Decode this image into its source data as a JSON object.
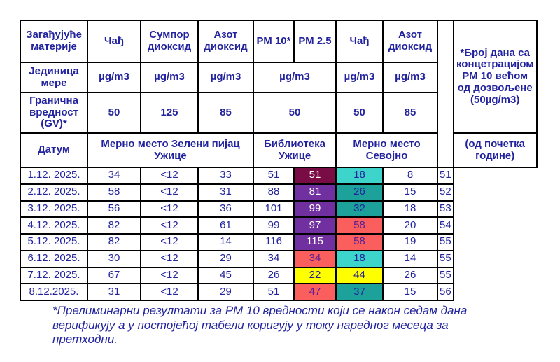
{
  "colors": {
    "text_navy": "#23239E",
    "maroon": "#7A0C45",
    "purple": "#7030A0",
    "red": "#FB5F5D",
    "turquoise": "#3DD5CB",
    "teal": "#1CA29A",
    "yellow": "#FFFF00",
    "red_cell_text": "#5A1F96",
    "yellow_cell_text": "#232184",
    "white": "#FFFFFF"
  },
  "table": {
    "pollutants_label": "Загађујуће материје",
    "pollutants": [
      "Чађ",
      "Сумпор диоксид",
      "Азот диоксид",
      "РМ 10*",
      "РМ 2.5",
      "Чађ",
      "Азот диоксид"
    ],
    "days_note": "*Број дана са концетрацијом РМ 10 већом од дозвољене (50µg/m3)",
    "unit_label": "Јединица мере",
    "units": [
      "µg/m3",
      "µg/m3",
      "µg/m3",
      "µg/m3",
      "µg/m3",
      "µg/m3"
    ],
    "limit_label": "Гранична вредност (GV)*",
    "limits": [
      "50",
      "125",
      "85",
      "50",
      "50",
      "85"
    ],
    "date_label": "Датум",
    "stations": [
      "Мерно место Зелени пијац Ужице",
      "Библиотека Ужице",
      "Мерно место Севојно"
    ],
    "days_sublabel": "(од почетка године)",
    "rows": [
      {
        "date": "1.12. 2025.",
        "cells": [
          {
            "t": "34"
          },
          {
            "t": "<12"
          },
          {
            "t": "33"
          },
          {
            "t": "51"
          },
          {
            "t": "51",
            "bg": "#7A0C45",
            "fg": "#FFFFFF"
          },
          {
            "t": "18",
            "bg": "#3DD5CB"
          },
          {
            "t": "8"
          }
        ],
        "days": "51"
      },
      {
        "date": "2.12. 2025.",
        "cells": [
          {
            "t": "58"
          },
          {
            "t": "<12"
          },
          {
            "t": "31"
          },
          {
            "t": "88"
          },
          {
            "t": "81",
            "bg": "#7030A0",
            "fg": "#FFFFFF"
          },
          {
            "t": "26",
            "bg": "#1CA29A"
          },
          {
            "t": "15"
          }
        ],
        "days": "52"
      },
      {
        "date": "3.12. 2025.",
        "cells": [
          {
            "t": "56"
          },
          {
            "t": "<12"
          },
          {
            "t": "36"
          },
          {
            "t": "101"
          },
          {
            "t": "99",
            "bg": "#7030A0",
            "fg": "#FFFFFF"
          },
          {
            "t": "32",
            "bg": "#1CA29A"
          },
          {
            "t": "18"
          }
        ],
        "days": "53"
      },
      {
        "date": "4.12. 2025.",
        "cells": [
          {
            "t": "82"
          },
          {
            "t": "<12"
          },
          {
            "t": "61"
          },
          {
            "t": "99"
          },
          {
            "t": "97",
            "bg": "#7030A0",
            "fg": "#FFFFFF"
          },
          {
            "t": "58",
            "bg": "#FB5F5D",
            "fg": "#5A1F96"
          },
          {
            "t": "20"
          }
        ],
        "days": "54"
      },
      {
        "date": "5.12. 2025.",
        "cells": [
          {
            "t": "82"
          },
          {
            "t": "<12"
          },
          {
            "t": "14"
          },
          {
            "t": "116"
          },
          {
            "t": "115",
            "bg": "#7030A0",
            "fg": "#FFFFFF"
          },
          {
            "t": "58",
            "bg": "#FB5F5D",
            "fg": "#5A1F96"
          },
          {
            "t": "19"
          }
        ],
        "days": "55"
      },
      {
        "date": "6.12. 2025.",
        "cells": [
          {
            "t": "30"
          },
          {
            "t": "<12"
          },
          {
            "t": "29"
          },
          {
            "t": "34"
          },
          {
            "t": "34",
            "bg": "#FB5F5D",
            "fg": "#5A1F96"
          },
          {
            "t": "18",
            "bg": "#3DD5CB"
          },
          {
            "t": "14"
          }
        ],
        "days": "55"
      },
      {
        "date": "7.12. 2025.",
        "cells": [
          {
            "t": "67"
          },
          {
            "t": "<12"
          },
          {
            "t": "45"
          },
          {
            "t": "26"
          },
          {
            "t": "22",
            "bg": "#FFFF00",
            "fg": "#232184"
          },
          {
            "t": "44",
            "bg": "#FFFF00",
            "fg": "#232184"
          },
          {
            "t": "26"
          }
        ],
        "days": "55"
      },
      {
        "date": "8.12.2025.",
        "cells": [
          {
            "t": "31"
          },
          {
            "t": "<12"
          },
          {
            "t": "29"
          },
          {
            "t": "51"
          },
          {
            "t": "47",
            "bg": "#FB5F5D",
            "fg": "#5A1F96"
          },
          {
            "t": "37",
            "bg": "#1CA29A"
          },
          {
            "t": "15"
          }
        ],
        "days": "56"
      }
    ]
  },
  "footnote": "*Прелиминарни резултати за РМ 10 вредности који се након седам дана верификују а у постојећој табели коригују у току наредног месеца за претходни."
}
